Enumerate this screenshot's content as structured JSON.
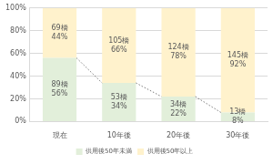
{
  "chart_data": {
    "type": "bar",
    "stacked": true,
    "categories": [
      "現在",
      "10年後",
      "20年後",
      "30年後"
    ],
    "series": [
      {
        "name": "供用後50年未満",
        "color": "#e2efda",
        "values": [
          56,
          34,
          22,
          8
        ],
        "value_labels": [
          [
            "89橋",
            "56%"
          ],
          [
            "53橋",
            "34%"
          ],
          [
            "34橋",
            "22%"
          ],
          [
            "13橋",
            "8%"
          ]
        ]
      },
      {
        "name": "供用後50年以上",
        "color": "#fff2cc",
        "values": [
          44,
          66,
          78,
          92
        ],
        "value_labels": [
          [
            "69橋",
            "44%"
          ],
          [
            "105橋",
            "66%"
          ],
          [
            "124橋",
            "78%"
          ],
          [
            "145橋",
            "92%"
          ]
        ]
      }
    ],
    "ylim": [
      0,
      100
    ],
    "yticks": [
      {
        "value": 0,
        "label": "0%"
      },
      {
        "value": 20,
        "label": "20%"
      },
      {
        "value": 40,
        "label": "40%"
      },
      {
        "value": 60,
        "label": "60%"
      },
      {
        "value": 80,
        "label": "80%"
      },
      {
        "value": 100,
        "label": "100%"
      }
    ],
    "grid": true,
    "legend": "bottom",
    "data_labels": true
  }
}
